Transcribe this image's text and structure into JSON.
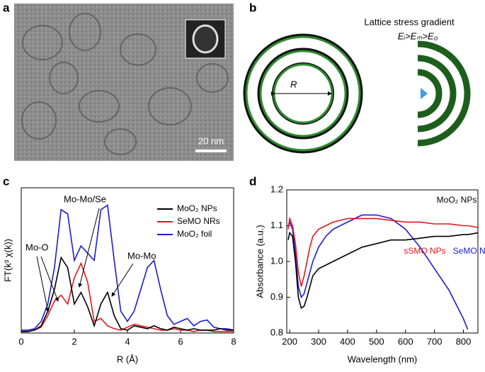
{
  "panels": [
    {
      "label": "a",
      "scale_bar": "20 nm"
    },
    {
      "label": "b",
      "title": "Lattice stress gradient",
      "equation": "Eᵢ>Eₘ>E₀",
      "radius_label": "R"
    },
    {
      "label": "c"
    },
    {
      "label": "d"
    }
  ],
  "chart_data": [
    {
      "type": "line",
      "xlabel": "R (Å)",
      "ylabel": "FT(k³ χ(k))",
      "xlim": [
        0,
        8
      ],
      "xticks": [
        0,
        2,
        4,
        6,
        8
      ],
      "ylim": [
        0,
        1
      ],
      "legend": "upper right",
      "annotations": [
        "Mo-O",
        "Mo-Mo/Se",
        "Mo-Mo"
      ],
      "x": [
        0,
        0.25,
        0.5,
        0.75,
        1,
        1.25,
        1.5,
        1.75,
        2,
        2.25,
        2.5,
        2.75,
        3,
        3.25,
        3.5,
        3.75,
        4,
        4.25,
        4.5,
        4.75,
        5,
        5.25,
        5.5,
        5.75,
        6,
        6.25,
        6.5,
        6.75,
        7,
        7.25,
        7.5,
        7.75,
        8
      ],
      "series": [
        {
          "name": "MoO₂ NPs",
          "color": "#000000",
          "values": [
            0.01,
            0.01,
            0.02,
            0.05,
            0.15,
            0.3,
            0.52,
            0.45,
            0.2,
            0.28,
            0.18,
            0.05,
            0.2,
            0.28,
            0.12,
            0.03,
            0.02,
            0.05,
            0.04,
            0.03,
            0.05,
            0.03,
            0.02,
            0.04,
            0.03,
            0.02,
            0.03,
            0.02,
            0.02,
            0.02,
            0.03,
            0.02,
            0.02
          ]
        },
        {
          "name": "SeMO NRs",
          "color": "#e8141c",
          "values": [
            0.01,
            0.01,
            0.02,
            0.04,
            0.12,
            0.22,
            0.26,
            0.2,
            0.38,
            0.48,
            0.35,
            0.08,
            0.1,
            0.05,
            0.03,
            0.02,
            0.04,
            0.06,
            0.05,
            0.04,
            0.03,
            0.02,
            0.02,
            0.03,
            0.02,
            0.02,
            0.01,
            0.02,
            0.02,
            0.01,
            0.01,
            0.01,
            0.01
          ]
        },
        {
          "name": "MoO₂ foil",
          "color": "#1a1adc",
          "values": [
            0.02,
            0.02,
            0.03,
            0.08,
            0.2,
            0.45,
            0.85,
            0.82,
            0.5,
            0.6,
            0.55,
            0.5,
            0.85,
            0.88,
            0.5,
            0.15,
            0.08,
            0.15,
            0.3,
            0.45,
            0.5,
            0.3,
            0.12,
            0.06,
            0.08,
            0.1,
            0.05,
            0.08,
            0.09,
            0.04,
            0.03,
            0.03,
            0.02
          ]
        }
      ]
    },
    {
      "type": "line",
      "xlabel": "Wavelength (nm)",
      "ylabel": "Absorbance (a.u.)",
      "xlim": [
        190,
        850
      ],
      "xticks": [
        200,
        300,
        400,
        500,
        600,
        700,
        800
      ],
      "ylim": [
        0.8,
        1.2
      ],
      "yticks": [
        0.8,
        0.9,
        {
          "value": 1,
          "label": "1.0"
        },
        1.1,
        1.2
      ],
      "x": [
        195,
        200,
        210,
        220,
        230,
        240,
        250,
        260,
        270,
        280,
        300,
        325,
        350,
        400,
        450,
        500,
        550,
        600,
        650,
        700,
        750,
        800,
        815,
        850
      ],
      "series": [
        {
          "name": "MoO₂ NPs",
          "color": "#000000",
          "values": [
            1.06,
            1.08,
            1.07,
            1.0,
            0.9,
            0.87,
            0.875,
            0.9,
            0.93,
            0.96,
            0.98,
            0.99,
            1.0,
            1.02,
            1.04,
            1.05,
            1.06,
            1.06,
            1.065,
            1.07,
            1.07,
            1.075,
            1.075,
            1.08
          ]
        },
        {
          "name": "sSMO NPs",
          "color": "#e8141c",
          "values": [
            1.09,
            1.12,
            1.1,
            1.05,
            0.97,
            0.93,
            0.96,
            1.0,
            1.04,
            1.07,
            1.09,
            1.1,
            1.11,
            1.12,
            1.12,
            1.12,
            1.115,
            1.11,
            1.11,
            1.105,
            1.105,
            1.1,
            1.1,
            1.095
          ]
        },
        {
          "name": "SeMO NRs",
          "color": "#1a1adc",
          "values": [
            1.1,
            1.11,
            1.09,
            1.02,
            0.93,
            0.9,
            0.91,
            0.94,
            0.97,
            1.0,
            1.04,
            1.07,
            1.09,
            1.11,
            1.13,
            1.13,
            1.12,
            1.09,
            1.04,
            0.98,
            0.92,
            0.84,
            0.81,
            null
          ]
        }
      ]
    }
  ]
}
